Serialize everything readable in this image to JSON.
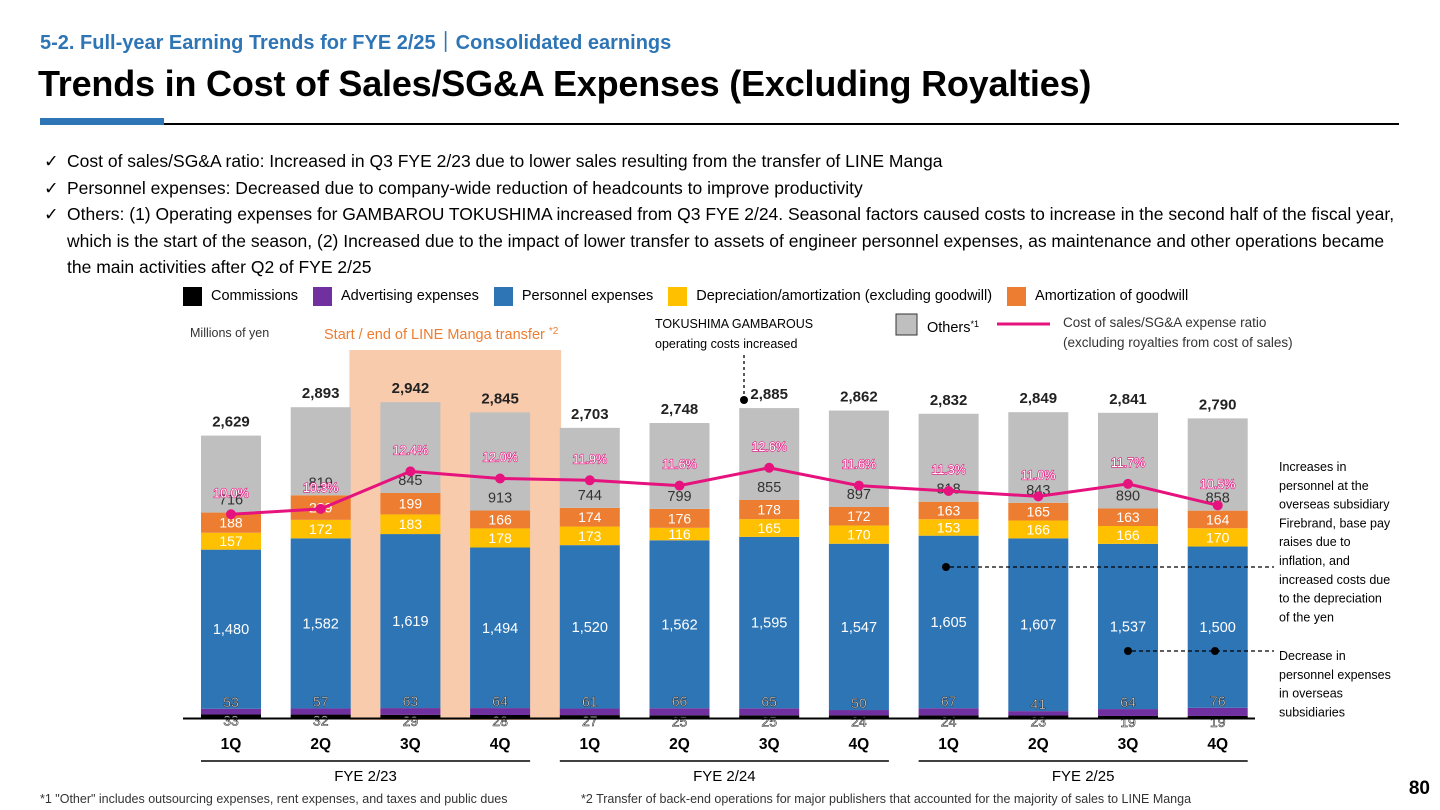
{
  "header": {
    "subtitle": "5-2. Full-year Earning Trends for FYE 2/25｜Consolidated earnings",
    "title": "Trends in Cost of Sales/SG&A Expenses (Excluding Royalties)"
  },
  "bullets": [
    "Cost of sales/SG&A ratio: Increased in Q3 FYE 2/23 due to lower sales resulting from the transfer of LINE Manga",
    "Personnel expenses: Decreased due to company-wide reduction of headcounts to improve productivity",
    "Others: (1) Operating expenses for GAMBAROU TOKUSHIMA increased from Q3 FYE 2/24. Seasonal factors caused costs to increase in the second half of the fiscal year, which is the start of the season, (2) Increased due to the impact of lower transfer to assets of engineer personnel expenses, as maintenance and other operations became the main activities after Q2 of FYE 2/25"
  ],
  "check_mark": "✓",
  "legend": {
    "commissions": "Commissions",
    "advertising": "Advertising expenses",
    "personnel": "Personnel expenses",
    "depreciation": "Depreciation/amortization (excluding goodwill)",
    "goodwill": "Amortization of goodwill",
    "others": "Others",
    "others_sup": "*1",
    "ratio_line1": "Cost of sales/SG&A expense ratio",
    "ratio_line2": "(excluding royalties from cost of sales)"
  },
  "colors": {
    "commissions": "#000000",
    "advertising": "#7030a0",
    "personnel": "#2e75b6",
    "depreciation": "#ffc000",
    "goodwill": "#ed7d31",
    "others": "#bfbfbf",
    "ratio": "#e6127d",
    "highlight": "#f8cbad",
    "subtitle": "#2e75b6"
  },
  "annotations": {
    "unit": "Millions of yen",
    "line_manga": "Start / end of LINE Manga transfer",
    "line_manga_sup": "*2",
    "tokushima_line1": "TOKUSHIMA GAMBAROUS",
    "tokushima_line2": "operating costs increased",
    "increase_note": [
      "Increases in",
      "personnel at the",
      "overseas subsidiary",
      "Firebrand, base pay",
      "raises due to",
      "inflation, and",
      "increased costs due",
      "to the depreciation",
      "of the yen"
    ],
    "decrease_note": [
      "Decrease in",
      "personnel expenses",
      "in overseas",
      "subsidiaries"
    ]
  },
  "footnotes": {
    "note1": "*1  \"Other\" includes outsourcing expenses, rent expenses, and taxes and public dues",
    "note2": "*2 Transfer of back-end operations for major publishers that accounted for the majority of sales to LINE Manga"
  },
  "page_number": "80",
  "chart_data": {
    "type": "bar",
    "stacked": true,
    "unit": "Millions of yen",
    "categories": [
      "1Q",
      "2Q",
      "3Q",
      "4Q",
      "1Q",
      "2Q",
      "3Q",
      "4Q",
      "1Q",
      "2Q",
      "3Q",
      "4Q"
    ],
    "groups": [
      {
        "name": "FYE 2/23",
        "quarters": [
          0,
          1,
          2,
          3
        ]
      },
      {
        "name": "FYE 2/24",
        "quarters": [
          4,
          5,
          6,
          7
        ]
      },
      {
        "name": "FYE 2/25",
        "quarters": [
          8,
          9,
          10,
          11
        ]
      }
    ],
    "series": [
      {
        "name": "Commissions",
        "key": "commissions",
        "values": [
          33,
          32,
          29,
          28,
          27,
          25,
          25,
          24,
          24,
          23,
          19,
          19
        ]
      },
      {
        "name": "Advertising expenses",
        "key": "advertising",
        "values": [
          53,
          57,
          63,
          64,
          61,
          66,
          65,
          50,
          67,
          41,
          64,
          76
        ]
      },
      {
        "name": "Personnel expenses",
        "key": "personnel",
        "values": [
          1480,
          1582,
          1619,
          1494,
          1520,
          1562,
          1595,
          1547,
          1605,
          1607,
          1537,
          1500
        ]
      },
      {
        "name": "Depreciation/amortization (excluding goodwill)",
        "key": "depreciation",
        "values": [
          157,
          172,
          183,
          178,
          173,
          116,
          165,
          170,
          153,
          166,
          166,
          170
        ]
      },
      {
        "name": "Amortization of goodwill",
        "key": "goodwill",
        "values": [
          188,
          229,
          199,
          166,
          174,
          176,
          178,
          172,
          163,
          165,
          163,
          164
        ]
      },
      {
        "name": "Others",
        "key": "others",
        "values": [
          716,
          819,
          845,
          913,
          744,
          799,
          855,
          897,
          818,
          843,
          890,
          858
        ]
      }
    ],
    "totals": [
      2629,
      2893,
      2942,
      2845,
      2703,
      2748,
      2885,
      2862,
      2832,
      2849,
      2841,
      2790
    ],
    "ratio": {
      "name": "Cost of sales/SG&A expense ratio",
      "values": [
        10.0,
        10.3,
        12.4,
        12.0,
        11.9,
        11.6,
        12.6,
        11.6,
        11.3,
        11.0,
        11.7,
        10.5
      ],
      "labels": [
        "10.0%",
        "10.3%",
        "12.4%",
        "12.0%",
        "11.9%",
        "11.6%",
        "12.6%",
        "11.6%",
        "11.3%",
        "11.0%",
        "11.7%",
        "10.5%"
      ],
      "ylim": [
        8,
        16
      ]
    },
    "ylim": [
      0,
      3500
    ],
    "highlight_quarters": [
      2,
      3
    ],
    "event_quarter": 6
  }
}
